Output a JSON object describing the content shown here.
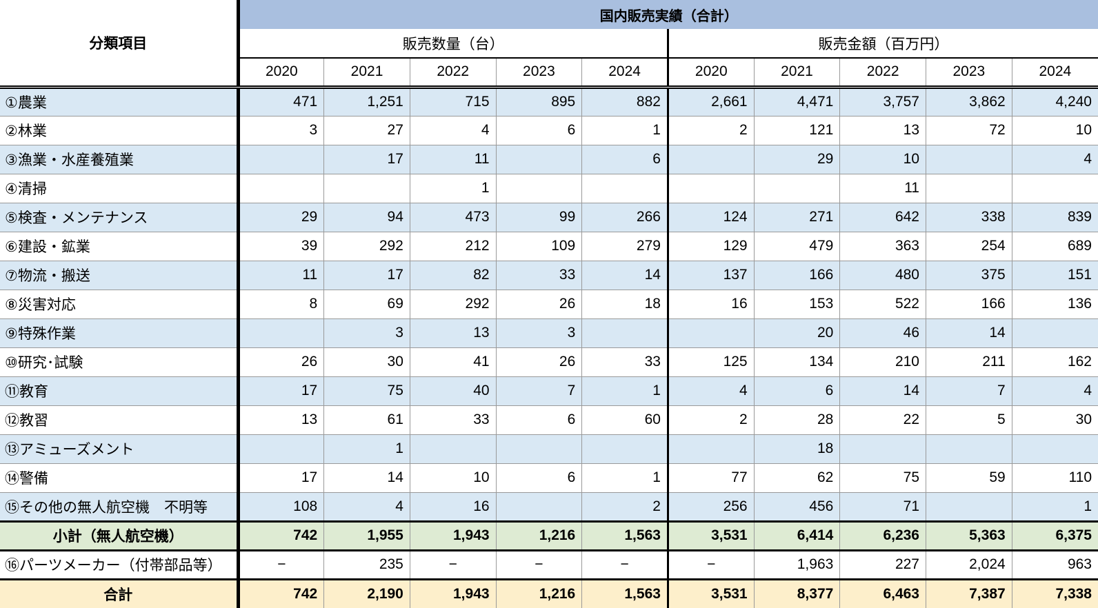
{
  "chart_data": {
    "type": "table",
    "title": "国内販売実績（合計）",
    "corner_label": "分類項目",
    "groups": [
      {
        "label": "販売数量（台）",
        "years": [
          "2020",
          "2021",
          "2022",
          "2023",
          "2024"
        ]
      },
      {
        "label": "販売金額（百万円）",
        "years": [
          "2020",
          "2021",
          "2022",
          "2023",
          "2024"
        ]
      }
    ],
    "rows": [
      {
        "label": "①農業",
        "variant": "blue",
        "bold": false,
        "label_align": "left",
        "qty": [
          "471",
          "1,251",
          "715",
          "895",
          "882"
        ],
        "amt": [
          "2,661",
          "4,471",
          "3,757",
          "3,862",
          "4,240"
        ]
      },
      {
        "label": "②林業",
        "variant": "white",
        "bold": false,
        "label_align": "left",
        "qty": [
          "3",
          "27",
          "4",
          "6",
          "1"
        ],
        "amt": [
          "2",
          "121",
          "13",
          "72",
          "10"
        ]
      },
      {
        "label": "③漁業・水産養殖業",
        "variant": "blue",
        "bold": false,
        "label_align": "left",
        "qty": [
          "",
          "17",
          "11",
          "",
          "6"
        ],
        "amt": [
          "",
          "29",
          "10",
          "",
          "4"
        ]
      },
      {
        "label": "④清掃",
        "variant": "white",
        "bold": false,
        "label_align": "left",
        "qty": [
          "",
          "",
          "1",
          "",
          ""
        ],
        "amt": [
          "",
          "",
          "11",
          "",
          ""
        ]
      },
      {
        "label": "⑤検査・メンテナンス",
        "variant": "blue",
        "bold": false,
        "label_align": "left",
        "qty": [
          "29",
          "94",
          "473",
          "99",
          "266"
        ],
        "amt": [
          "124",
          "271",
          "642",
          "338",
          "839"
        ]
      },
      {
        "label": "⑥建設・鉱業",
        "variant": "white",
        "bold": false,
        "label_align": "left",
        "qty": [
          "39",
          "292",
          "212",
          "109",
          "279"
        ],
        "amt": [
          "129",
          "479",
          "363",
          "254",
          "689"
        ]
      },
      {
        "label": "⑦物流・搬送",
        "variant": "blue",
        "bold": false,
        "label_align": "left",
        "qty": [
          "11",
          "17",
          "82",
          "33",
          "14"
        ],
        "amt": [
          "137",
          "166",
          "480",
          "375",
          "151"
        ]
      },
      {
        "label": "⑧災害対応",
        "variant": "white",
        "bold": false,
        "label_align": "left",
        "qty": [
          "8",
          "69",
          "292",
          "26",
          "18"
        ],
        "amt": [
          "16",
          "153",
          "522",
          "166",
          "136"
        ]
      },
      {
        "label": "⑨特殊作業",
        "variant": "blue",
        "bold": false,
        "label_align": "left",
        "qty": [
          "",
          "3",
          "13",
          "3",
          ""
        ],
        "amt": [
          "",
          "20",
          "46",
          "14",
          ""
        ]
      },
      {
        "label": "⑩研究･試験",
        "variant": "white",
        "bold": false,
        "label_align": "left",
        "qty": [
          "26",
          "30",
          "41",
          "26",
          "33"
        ],
        "amt": [
          "125",
          "134",
          "210",
          "211",
          "162"
        ]
      },
      {
        "label": "⑪教育",
        "variant": "blue",
        "bold": false,
        "label_align": "left",
        "qty": [
          "17",
          "75",
          "40",
          "7",
          "1"
        ],
        "amt": [
          "4",
          "6",
          "14",
          "7",
          "4"
        ]
      },
      {
        "label": "⑫教習",
        "variant": "white",
        "bold": false,
        "label_align": "left",
        "qty": [
          "13",
          "61",
          "33",
          "6",
          "60"
        ],
        "amt": [
          "2",
          "28",
          "22",
          "5",
          "30"
        ]
      },
      {
        "label": "⑬アミューズメント",
        "variant": "blue",
        "bold": false,
        "label_align": "left",
        "qty": [
          "",
          "1",
          "",
          "",
          ""
        ],
        "amt": [
          "",
          "18",
          "",
          "",
          ""
        ]
      },
      {
        "label": "⑭警備",
        "variant": "white",
        "bold": false,
        "label_align": "left",
        "qty": [
          "17",
          "14",
          "10",
          "6",
          "1"
        ],
        "amt": [
          "77",
          "62",
          "75",
          "59",
          "110"
        ]
      },
      {
        "label": "⑮その他の無人航空機　不明等",
        "variant": "blue",
        "bold": false,
        "label_align": "left",
        "qty": [
          "108",
          "4",
          "16",
          "",
          "2"
        ],
        "amt": [
          "256",
          "456",
          "71",
          "",
          "1"
        ]
      },
      {
        "label": "小計（無人航空機）",
        "variant": "green",
        "bold": true,
        "label_align": "center",
        "qty": [
          "742",
          "1,955",
          "1,943",
          "1,216",
          "1,563"
        ],
        "amt": [
          "3,531",
          "6,414",
          "6,236",
          "5,363",
          "6,375"
        ]
      },
      {
        "label": "⑯パーツメーカー（付帯部品等）",
        "variant": "white",
        "bold": false,
        "label_align": "left",
        "qty": [
          "−",
          "235",
          "−",
          "−",
          "−"
        ],
        "amt": [
          "−",
          "1,963",
          "227",
          "2,024",
          "963"
        ]
      },
      {
        "label": "合計",
        "variant": "cream",
        "bold": true,
        "label_align": "center",
        "qty": [
          "742",
          "2,190",
          "1,943",
          "1,216",
          "1,563"
        ],
        "amt": [
          "3,531",
          "8,377",
          "6,463",
          "7,387",
          "7,338"
        ]
      }
    ],
    "colors": {
      "header_band": "#a9bfdf",
      "row_alt_blue": "#d9e8f4",
      "subtotal_green": "#deebd3",
      "total_cream": "#fdefcb",
      "grid_line": "#999999",
      "heavy_line": "#000000"
    },
    "layout": {
      "grid": true,
      "legend": "none"
    }
  }
}
